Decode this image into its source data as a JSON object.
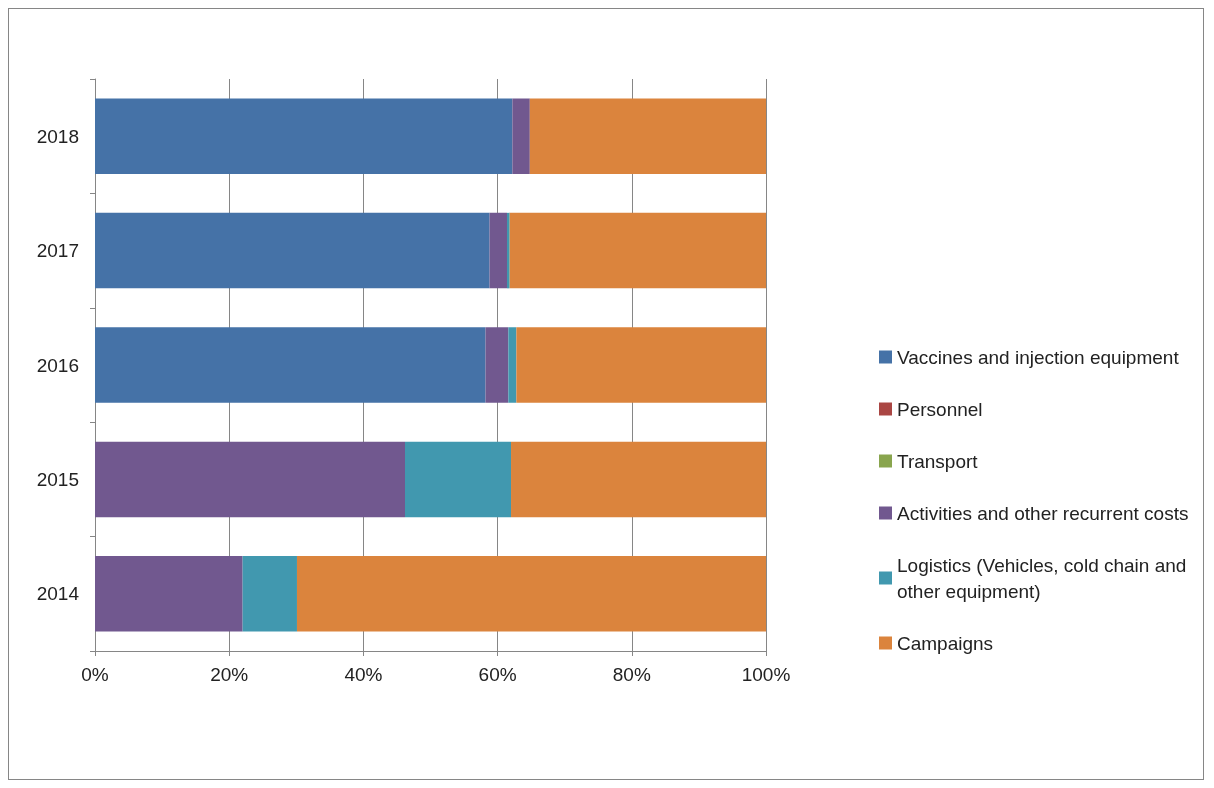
{
  "chart_data": {
    "type": "bar",
    "orientation": "horizontal",
    "stacked": true,
    "categories": [
      "2018",
      "2017",
      "2016",
      "2015",
      "2014"
    ],
    "series": [
      {
        "name": "Vaccines and injection equipment",
        "color": "#4572a7",
        "values": [
          62.2,
          58.8,
          58.2,
          0,
          0
        ]
      },
      {
        "name": "Personnel",
        "color": "#aa4643",
        "values": [
          0,
          0,
          0,
          0,
          0
        ]
      },
      {
        "name": "Transport",
        "color": "#89a54e",
        "values": [
          0,
          0,
          0,
          0,
          0
        ]
      },
      {
        "name": "Activities and other recurrent costs",
        "color": "#71588f",
        "values": [
          2.6,
          2.6,
          3.4,
          46.2,
          22
        ]
      },
      {
        "name": "Logistics (Vehicles, cold chain and other equipment)",
        "color": "#4198af",
        "values": [
          0,
          0.4,
          1.2,
          15.8,
          8.1
        ]
      },
      {
        "name": "Campaigns",
        "color": "#db843d",
        "values": [
          35.2,
          38.2,
          37.2,
          38,
          69.9
        ]
      }
    ],
    "xlim": [
      0,
      100
    ],
    "xticks": [
      {
        "value": 0,
        "label": "0%"
      },
      {
        "value": 20,
        "label": "20%"
      },
      {
        "value": 40,
        "label": "40%"
      },
      {
        "value": 60,
        "label": "60%"
      },
      {
        "value": 80,
        "label": "80%"
      },
      {
        "value": 100,
        "label": "100%"
      }
    ],
    "grid": "x",
    "legend": "right"
  }
}
